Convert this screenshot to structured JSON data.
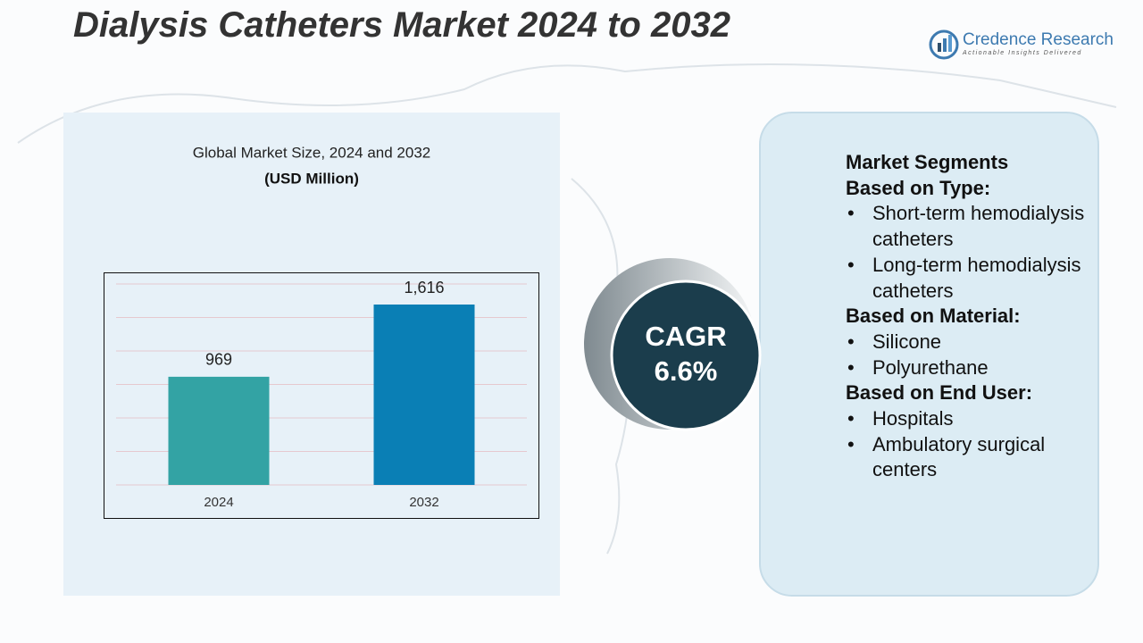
{
  "title": "Dialysis Catheters Market 2024 to 2032",
  "logo": {
    "name": "Credence Research",
    "tagline": "Actionable Insights Delivered"
  },
  "chart_data": {
    "type": "bar",
    "title": "Global Market Size, 2024 and 2032",
    "subtitle": "(USD Million)",
    "categories": [
      "2024",
      "2032"
    ],
    "values": [
      969,
      1616
    ],
    "value_labels": [
      "969",
      "1,616"
    ],
    "colors": [
      "#33a3a4",
      "#0a7fb5"
    ],
    "ylim": [
      0,
      1800
    ],
    "yticks": [
      0,
      300,
      600,
      900,
      1200,
      1500,
      1800
    ],
    "grid": true
  },
  "cagr": {
    "label": "CAGR",
    "value": "6.6%"
  },
  "segments": {
    "heading": "Market Segments",
    "groups": [
      {
        "title": "Based on Type:",
        "items": [
          "Short-term hemodialysis catheters",
          "Long-term hemodialysis catheters"
        ]
      },
      {
        "title": "Based on Material:",
        "items": [
          "Silicone",
          "Polyurethane"
        ]
      },
      {
        "title": "Based on End User:",
        "items": [
          "Hospitals",
          "Ambulatory surgical centers"
        ]
      }
    ]
  }
}
